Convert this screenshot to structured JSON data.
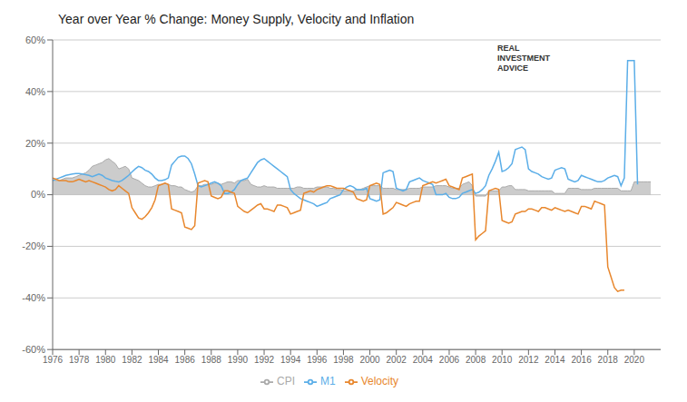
{
  "chart_data": {
    "type": "line",
    "title": "Year over Year % Change: Money Supply, Velocity and Inflation",
    "annotations": [
      "REAL",
      "INVESTMENT",
      "ADVICE"
    ],
    "x": [
      1976.0,
      1976.25,
      1976.5,
      1976.75,
      1977.0,
      1977.25,
      1977.5,
      1977.75,
      1978.0,
      1978.25,
      1978.5,
      1978.75,
      1979.0,
      1979.25,
      1979.5,
      1979.75,
      1980.0,
      1980.25,
      1980.5,
      1980.75,
      1981.0,
      1981.25,
      1981.5,
      1981.75,
      1982.0,
      1982.25,
      1982.5,
      1982.75,
      1983.0,
      1983.25,
      1983.5,
      1983.75,
      1984.0,
      1984.25,
      1984.5,
      1984.75,
      1985.0,
      1985.25,
      1985.5,
      1985.75,
      1986.0,
      1986.25,
      1986.5,
      1986.75,
      1987.0,
      1987.25,
      1987.5,
      1987.75,
      1988.0,
      1988.25,
      1988.5,
      1988.75,
      1989.0,
      1989.25,
      1989.5,
      1989.75,
      1990.0,
      1990.25,
      1990.5,
      1990.75,
      1991.0,
      1991.25,
      1991.5,
      1991.75,
      1992.0,
      1992.25,
      1992.5,
      1992.75,
      1993.0,
      1993.25,
      1993.5,
      1993.75,
      1994.0,
      1994.25,
      1994.5,
      1994.75,
      1995.0,
      1995.25,
      1995.5,
      1995.75,
      1996.0,
      1996.25,
      1996.5,
      1996.75,
      1997.0,
      1997.25,
      1997.5,
      1997.75,
      1998.0,
      1998.25,
      1998.5,
      1998.75,
      1999.0,
      1999.25,
      1999.5,
      1999.75,
      2000.0,
      2000.25,
      2000.5,
      2000.75,
      2001.0,
      2001.25,
      2001.5,
      2001.75,
      2002.0,
      2002.25,
      2002.5,
      2002.75,
      2003.0,
      2003.25,
      2003.5,
      2003.75,
      2004.0,
      2004.25,
      2004.5,
      2004.75,
      2005.0,
      2005.25,
      2005.5,
      2005.75,
      2006.0,
      2006.25,
      2006.5,
      2006.75,
      2007.0,
      2007.25,
      2007.5,
      2007.75,
      2008.0,
      2008.25,
      2008.5,
      2008.75,
      2009.0,
      2009.25,
      2009.5,
      2009.75,
      2010.0,
      2010.25,
      2010.5,
      2010.75,
      2011.0,
      2011.25,
      2011.5,
      2011.75,
      2012.0,
      2012.25,
      2012.5,
      2012.75,
      2013.0,
      2013.25,
      2013.5,
      2013.75,
      2014.0,
      2014.25,
      2014.5,
      2014.75,
      2015.0,
      2015.25,
      2015.5,
      2015.75,
      2016.0,
      2016.25,
      2016.5,
      2016.75,
      2017.0,
      2017.25,
      2017.5,
      2017.75,
      2018.0,
      2018.25,
      2018.5,
      2018.75,
      2019.0,
      2019.25,
      2019.5,
      2019.75,
      2020.0,
      2020.25,
      2020.5,
      2020.75,
      2021.0,
      2021.25
    ],
    "series": [
      {
        "name": "CPI",
        "type": "area",
        "color": "#aaaaaa",
        "values": [
          5.8,
          5.5,
          5.5,
          6.0,
          6.5,
          6.5,
          6.5,
          7.0,
          7.5,
          8.0,
          8.5,
          9.5,
          11.0,
          11.5,
          12.0,
          12.5,
          13.5,
          14.0,
          13.0,
          12.0,
          10.0,
          10.5,
          11.0,
          10.0,
          6.5,
          6.0,
          5.5,
          4.5,
          3.5,
          3.0,
          3.0,
          3.5,
          4.0,
          4.0,
          4.5,
          4.0,
          3.5,
          3.5,
          3.0,
          3.0,
          2.0,
          1.5,
          1.0,
          1.5,
          3.5,
          3.5,
          4.0,
          4.0,
          4.0,
          4.5,
          4.5,
          4.0,
          4.5,
          5.0,
          5.0,
          4.5,
          5.5,
          5.5,
          5.5,
          6.0,
          4.0,
          3.5,
          3.0,
          3.0,
          3.5,
          3.0,
          3.0,
          3.0,
          2.5,
          2.5,
          2.5,
          2.5,
          2.5,
          2.5,
          3.0,
          3.0,
          2.5,
          2.5,
          2.5,
          2.5,
          3.0,
          3.0,
          3.0,
          3.0,
          2.5,
          2.5,
          2.0,
          2.0,
          1.5,
          1.5,
          1.5,
          1.5,
          2.0,
          2.0,
          2.5,
          3.0,
          3.5,
          3.5,
          3.5,
          3.5,
          2.5,
          2.5,
          2.5,
          2.5,
          2.0,
          2.0,
          2.0,
          2.0,
          2.5,
          2.5,
          2.5,
          2.5,
          3.0,
          3.0,
          3.0,
          3.0,
          3.5,
          3.5,
          3.5,
          3.5,
          3.0,
          2.5,
          2.5,
          2.5,
          4.0,
          4.5,
          5.0,
          3.5,
          -0.5,
          -0.5,
          -0.5,
          -0.5,
          1.5,
          1.5,
          1.5,
          1.5,
          3.0,
          3.0,
          3.5,
          3.5,
          2.0,
          2.0,
          2.0,
          2.0,
          1.5,
          1.5,
          1.5,
          1.5,
          1.5,
          1.5,
          1.5,
          1.5,
          0.5,
          0.5,
          0.5,
          0.5,
          2.5,
          2.5,
          2.5,
          2.5,
          2.0,
          2.0,
          2.0,
          2.0,
          2.5,
          2.5,
          2.5,
          2.5,
          2.5,
          2.5,
          2.5,
          2.5,
          1.5,
          1.5,
          1.5,
          1.5,
          5.0,
          5.0,
          5.0,
          5.0,
          5.0,
          5.0
        ]
      },
      {
        "name": "M1",
        "type": "line",
        "color": "#5baee8",
        "values": [
          5.5,
          6.0,
          6.5,
          7.0,
          7.5,
          7.8,
          8.0,
          8.2,
          8.2,
          8.0,
          7.8,
          7.5,
          7.0,
          7.5,
          8.0,
          7.5,
          6.5,
          6.0,
          5.5,
          5.2,
          5.0,
          5.5,
          6.5,
          7.5,
          8.8,
          10.0,
          11.0,
          10.5,
          9.5,
          9.0,
          8.0,
          6.5,
          5.5,
          5.5,
          5.8,
          6.5,
          11.5,
          13.0,
          14.5,
          15.0,
          15.0,
          14.0,
          12.0,
          8.0,
          3.5,
          3.0,
          3.5,
          4.0,
          4.5,
          5.0,
          4.5,
          3.5,
          0.5,
          0.5,
          1.0,
          2.0,
          4.0,
          5.5,
          6.0,
          6.5,
          8.5,
          10.5,
          12.5,
          13.5,
          14.0,
          13.0,
          12.0,
          11.0,
          10.0,
          9.0,
          8.0,
          7.0,
          2.0,
          0.5,
          -0.5,
          -1.5,
          -2.0,
          -2.5,
          -3.0,
          -3.5,
          -4.5,
          -4.0,
          -3.5,
          -3.0,
          -1.5,
          -1.0,
          -0.5,
          0.0,
          2.0,
          3.0,
          3.5,
          3.0,
          2.0,
          2.0,
          2.0,
          2.5,
          -1.5,
          -2.0,
          -2.5,
          -2.0,
          8.5,
          9.0,
          9.5,
          9.0,
          2.5,
          2.0,
          1.5,
          2.0,
          5.0,
          5.5,
          6.0,
          6.5,
          5.5,
          5.0,
          4.5,
          4.0,
          0.0,
          0.0,
          0.0,
          0.5,
          -1.0,
          -1.5,
          -1.5,
          -1.0,
          0.5,
          1.0,
          1.5,
          2.0,
          0.5,
          1.0,
          2.0,
          3.5,
          7.5,
          10.0,
          13.0,
          16.5,
          9.0,
          9.5,
          10.5,
          12.0,
          17.5,
          18.0,
          18.5,
          17.5,
          10.0,
          9.0,
          8.5,
          8.0,
          7.0,
          6.5,
          6.0,
          6.5,
          9.5,
          10.0,
          10.5,
          10.0,
          6.0,
          5.5,
          5.0,
          5.5,
          7.5,
          7.0,
          6.5,
          6.0,
          5.5,
          5.0,
          5.0,
          5.5,
          6.5,
          7.0,
          7.5,
          7.0,
          3.5,
          6.5,
          52.0,
          52.0,
          52.0,
          4.0,
          null,
          null,
          null,
          null
        ]
      },
      {
        "name": "Velocity",
        "type": "line",
        "color": "#e8872d",
        "values": [
          6.5,
          6.0,
          5.5,
          5.5,
          5.5,
          5.0,
          5.0,
          5.5,
          6.0,
          5.5,
          5.0,
          5.5,
          5.0,
          4.5,
          4.0,
          3.5,
          3.0,
          2.0,
          1.5,
          2.0,
          3.5,
          2.5,
          1.5,
          0.5,
          -5.0,
          -7.0,
          -9.0,
          -9.5,
          -8.5,
          -7.0,
          -5.0,
          -2.0,
          3.5,
          4.0,
          4.5,
          4.0,
          -5.5,
          -6.0,
          -6.5,
          -7.0,
          -12.5,
          -13.0,
          -13.5,
          -12.0,
          4.5,
          5.0,
          5.5,
          5.0,
          -0.5,
          -1.0,
          -1.5,
          -1.0,
          1.5,
          1.5,
          1.0,
          0.5,
          -4.5,
          -5.5,
          -6.5,
          -7.0,
          -6.0,
          -5.0,
          -4.0,
          -3.5,
          -5.5,
          -5.5,
          -6.0,
          -6.5,
          -4.0,
          -4.0,
          -4.5,
          -5.0,
          -7.5,
          -7.0,
          -6.5,
          -6.0,
          0.5,
          1.0,
          1.5,
          1.0,
          2.0,
          2.5,
          3.0,
          3.5,
          3.5,
          3.0,
          2.5,
          2.5,
          2.5,
          2.0,
          1.5,
          1.0,
          -1.5,
          -2.0,
          -2.5,
          -2.0,
          3.5,
          4.0,
          4.5,
          4.0,
          -7.5,
          -7.0,
          -6.0,
          -5.0,
          -3.0,
          -3.5,
          -4.0,
          -4.5,
          -3.5,
          -3.0,
          -2.5,
          -2.5,
          3.5,
          4.0,
          4.5,
          5.0,
          4.5,
          5.0,
          5.5,
          6.0,
          3.5,
          3.0,
          2.5,
          2.0,
          6.5,
          7.0,
          7.5,
          8.0,
          -17.5,
          -16.0,
          -15.0,
          -14.0,
          1.5,
          2.0,
          2.5,
          2.0,
          -10.0,
          -10.5,
          -11.0,
          -10.5,
          -7.5,
          -7.0,
          -6.5,
          -6.5,
          -5.5,
          -5.5,
          -6.0,
          -6.5,
          -5.0,
          -5.0,
          -5.5,
          -6.0,
          -5.0,
          -5.5,
          -6.0,
          -6.5,
          -6.0,
          -6.5,
          -7.0,
          -7.5,
          -4.5,
          -4.5,
          -5.0,
          -5.5,
          -2.5,
          -3.0,
          -3.5,
          -4.0,
          -28.0,
          -32.0,
          -36.0,
          -37.5,
          -37.0,
          -37.0,
          null,
          null,
          null,
          null,
          null,
          null,
          null,
          null
        ]
      }
    ],
    "xlim": [
      1976,
      2022
    ],
    "xticks": [
      1976,
      1978,
      1980,
      1982,
      1984,
      1986,
      1988,
      1990,
      1992,
      1994,
      1996,
      1998,
      2000,
      2002,
      2004,
      2006,
      2008,
      2010,
      2012,
      2014,
      2016,
      2018,
      2020
    ],
    "ylim": [
      -60,
      60
    ],
    "yticks": [
      {
        "value": -60,
        "label": "-60%"
      },
      {
        "value": -40,
        "label": "-40%"
      },
      {
        "value": -20,
        "label": "-20%"
      },
      {
        "value": 0,
        "label": "0%"
      },
      {
        "value": 20,
        "label": "20%"
      },
      {
        "value": 40,
        "label": "40%"
      },
      {
        "value": 60,
        "label": "60%"
      }
    ],
    "grid": true,
    "legend": "bottom"
  }
}
